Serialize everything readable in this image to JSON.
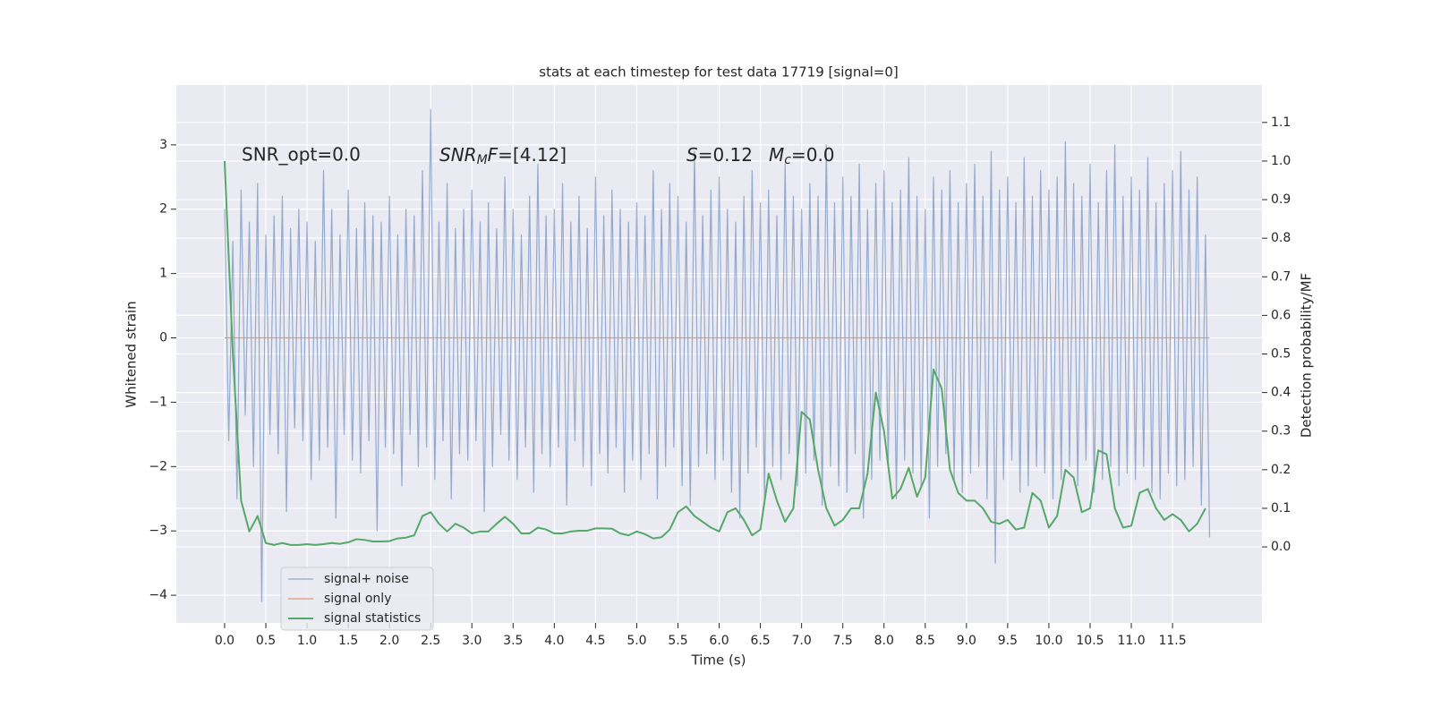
{
  "chart_data": {
    "type": "line",
    "title": "stats at each timestep for test data 17719 [signal=0]",
    "xlabel": "Time (s)",
    "ylabel": "Whitened strain",
    "y2label": "Detection probability/MF",
    "annotations": [
      "SNR_opt=0.0",
      [
        "SNR",
        "M",
        "F",
        "=[4.12]"
      ],
      [
        "S",
        "=0.12",
        "M",
        "c",
        "=0.0"
      ]
    ],
    "grid": true,
    "legend": "lower left",
    "xlim": [
      -0.586,
      12.585
    ],
    "ylim": [
      -4.43,
      3.93
    ],
    "y2lim": [
      -0.197,
      1.197
    ],
    "xticks": [
      {
        "value": 0,
        "label": "0.0"
      },
      0.5,
      {
        "value": 1,
        "label": "1.0"
      },
      1.5,
      {
        "value": 2,
        "label": "2.0"
      },
      2.5,
      {
        "value": 3,
        "label": "3.0"
      },
      3.5,
      {
        "value": 4,
        "label": "4.0"
      },
      4.5,
      {
        "value": 5,
        "label": "5.0"
      },
      5.5,
      {
        "value": 6,
        "label": "6.0"
      },
      6.5,
      {
        "value": 7,
        "label": "7.0"
      },
      7.5,
      {
        "value": 8,
        "label": "8.0"
      },
      8.5,
      {
        "value": 9,
        "label": "9.0"
      },
      9.5,
      {
        "value": 10,
        "label": "10.0"
      },
      10.5,
      {
        "value": 11,
        "label": "11.0"
      },
      11.5
    ],
    "yticks": [
      {
        "value": -4,
        "label": "−4"
      },
      {
        "value": -3,
        "label": "−3"
      },
      {
        "value": -2,
        "label": "−2"
      },
      {
        "value": -1,
        "label": "−1"
      },
      0,
      1,
      2,
      3
    ],
    "y2ticks": [
      {
        "value": 0,
        "label": "0.0"
      },
      0.1,
      0.2,
      0.3,
      0.4,
      0.5,
      0.6,
      0.7,
      0.8,
      0.9,
      {
        "value": 1,
        "label": "1.0"
      },
      1.1
    ],
    "x": [
      0,
      0.05,
      0.1,
      0.15,
      0.2,
      0.25,
      0.3,
      0.35,
      0.4,
      0.45,
      0.5,
      0.55,
      0.6,
      0.65,
      0.7,
      0.75,
      0.8,
      0.85,
      0.9,
      0.95,
      1,
      1.05,
      1.1,
      1.15,
      1.2,
      1.25,
      1.3,
      1.35,
      1.4,
      1.45,
      1.5,
      1.55,
      1.6,
      1.65,
      1.7,
      1.75,
      1.8,
      1.85,
      1.9,
      1.95,
      2,
      2.05,
      2.1,
      2.15,
      2.2,
      2.25,
      2.3,
      2.35,
      2.4,
      2.45,
      2.5,
      2.55,
      2.6,
      2.65,
      2.7,
      2.75,
      2.8,
      2.85,
      2.9,
      2.95,
      3,
      3.05,
      3.1,
      3.15,
      3.2,
      3.25,
      3.3,
      3.35,
      3.4,
      3.45,
      3.5,
      3.55,
      3.6,
      3.65,
      3.7,
      3.75,
      3.8,
      3.85,
      3.9,
      3.95,
      4,
      4.05,
      4.1,
      4.15,
      4.2,
      4.25,
      4.3,
      4.35,
      4.4,
      4.45,
      4.5,
      4.55,
      4.6,
      4.65,
      4.7,
      4.75,
      4.8,
      4.85,
      4.9,
      4.95,
      5,
      5.05,
      5.1,
      5.15,
      5.2,
      5.25,
      5.3,
      5.35,
      5.4,
      5.45,
      5.5,
      5.55,
      5.6,
      5.65,
      5.7,
      5.75,
      5.8,
      5.85,
      5.9,
      5.95,
      6,
      6.05,
      6.1,
      6.15,
      6.2,
      6.25,
      6.3,
      6.35,
      6.4,
      6.45,
      6.5,
      6.55,
      6.6,
      6.65,
      6.7,
      6.75,
      6.8,
      6.85,
      6.9,
      6.95,
      7,
      7.05,
      7.1,
      7.15,
      7.2,
      7.25,
      7.3,
      7.35,
      7.4,
      7.45,
      7.5,
      7.55,
      7.6,
      7.65,
      7.7,
      7.75,
      7.8,
      7.85,
      7.9,
      7.95,
      8,
      8.05,
      8.1,
      8.15,
      8.2,
      8.25,
      8.3,
      8.35,
      8.4,
      8.45,
      8.5,
      8.55,
      8.6,
      8.65,
      8.7,
      8.75,
      8.8,
      8.85,
      8.9,
      8.95,
      9,
      9.05,
      9.1,
      9.15,
      9.2,
      9.25,
      9.3,
      9.35,
      9.4,
      9.45,
      9.5,
      9.55,
      9.6,
      9.65,
      9.7,
      9.75,
      9.8,
      9.85,
      9.9,
      9.95,
      10,
      10.05,
      10.1,
      10.15,
      10.2,
      10.25,
      10.3,
      10.35,
      10.4,
      10.45,
      10.5,
      10.55,
      10.6,
      10.65,
      10.7,
      10.75,
      10.8,
      10.85,
      10.9,
      10.95,
      11,
      11.05,
      11.1,
      11.15,
      11.2,
      11.25,
      11.3,
      11.35,
      11.4,
      11.45,
      11.5,
      11.55,
      11.6,
      11.65,
      11.7,
      11.75,
      11.8,
      11.85,
      11.9,
      11.95
    ],
    "series": [
      {
        "name": "signal+ noise",
        "color": "#4c72b0",
        "values": [
          2.0,
          -1.6,
          1.5,
          -2.5,
          2.3,
          -1.2,
          1.8,
          -2.0,
          2.4,
          -4.1,
          1.6,
          -1.5,
          1.9,
          -1.8,
          2.2,
          -2.7,
          1.7,
          -1.4,
          2.0,
          -1.6,
          1.8,
          -2.2,
          1.5,
          -1.9,
          2.6,
          -1.7,
          2.0,
          -2.8,
          1.6,
          -1.5,
          2.3,
          -1.9,
          1.7,
          -2.1,
          2.1,
          -1.6,
          1.9,
          -3.0,
          1.8,
          -1.7,
          2.2,
          -1.8,
          1.6,
          -2.3,
          2.0,
          -1.5,
          1.9,
          -2.0,
          2.6,
          -1.7,
          3.55,
          -2.2,
          1.8,
          -1.6,
          2.4,
          -2.5,
          1.7,
          -1.8,
          2.0,
          -1.9,
          2.3,
          -1.6,
          1.8,
          -2.7,
          2.1,
          -2.0,
          1.7,
          -1.5,
          2.5,
          -1.9,
          2.0,
          -2.2,
          1.6,
          -1.7,
          2.2,
          -2.4,
          2.7,
          -1.8,
          1.9,
          -2.0,
          2.0,
          -1.7,
          2.4,
          -2.6,
          1.8,
          -1.6,
          2.2,
          -2.0,
          1.7,
          -2.3,
          2.5,
          -1.8,
          1.9,
          -2.1,
          2.3,
          -1.7,
          2.0,
          -2.4,
          1.8,
          -1.9,
          2.1,
          -2.2,
          1.9,
          -1.8,
          2.6,
          -2.5,
          2.0,
          -2.0,
          2.4,
          -1.7,
          2.2,
          -2.3,
          1.8,
          -2.6,
          2.9,
          -2.0,
          1.9,
          -1.8,
          2.3,
          -2.2,
          2.5,
          -1.9,
          2.0,
          -2.4,
          1.8,
          -2.8,
          2.2,
          -2.1,
          2.6,
          -1.7,
          2.1,
          -2.5,
          2.3,
          -2.0,
          1.9,
          -2.2,
          2.7,
          -1.8,
          2.2,
          -2.3,
          2.0,
          -2.1,
          2.4,
          -1.9,
          2.2,
          -2.6,
          3.0,
          -2.0,
          2.1,
          -2.3,
          2.5,
          -2.4,
          2.2,
          -1.8,
          2.7,
          -2.8,
          2.0,
          -2.2,
          2.4,
          -1.9,
          2.6,
          -2.0,
          2.1,
          -2.5,
          2.3,
          -1.9,
          2.8,
          -2.1,
          2.2,
          -2.3,
          2.0,
          -2.8,
          2.5,
          -2.0,
          2.3,
          -1.8,
          2.6,
          -2.2,
          2.1,
          -2.4,
          2.4,
          -2.1,
          2.7,
          -2.0,
          2.2,
          -2.5,
          2.9,
          -3.5,
          2.3,
          -2.2,
          2.5,
          -1.9,
          2.1,
          -2.4,
          2.8,
          -2.3,
          2.2,
          -2.0,
          2.6,
          -2.1,
          2.3,
          -2.5,
          2.5,
          -2.2,
          3.05,
          -2.0,
          2.4,
          -2.3,
          2.2,
          -1.9,
          2.7,
          -2.4,
          2.1,
          -2.2,
          2.6,
          -2.0,
          3.0,
          -2.3,
          2.2,
          -2.1,
          2.5,
          -2.2,
          2.3,
          -2.0,
          2.8,
          -2.4,
          2.1,
          -2.5,
          2.4,
          -2.1,
          2.6,
          -2.3,
          2.9,
          -2.2,
          2.3,
          -2.0,
          2.5,
          -2.6,
          1.6,
          -3.1
        ]
      },
      {
        "name": "signal only",
        "color": "#dd8452",
        "values": [
          0,
          0,
          0,
          0,
          0,
          0,
          0,
          0,
          0,
          0,
          0,
          0,
          0,
          0,
          0,
          0,
          0,
          0,
          0,
          0,
          0,
          0,
          0,
          0,
          0,
          0,
          0,
          0,
          0,
          0,
          0,
          0,
          0,
          0,
          0,
          0,
          0,
          0,
          0,
          0,
          0,
          0,
          0,
          0,
          0,
          0,
          0,
          0,
          0,
          0,
          0,
          0,
          0,
          0,
          0,
          0,
          0,
          0,
          0,
          0,
          0,
          0,
          0,
          0,
          0,
          0,
          0,
          0,
          0,
          0,
          0,
          0,
          0,
          0,
          0,
          0,
          0,
          0,
          0,
          0,
          0,
          0,
          0,
          0,
          0,
          0,
          0,
          0,
          0,
          0,
          0,
          0,
          0,
          0,
          0,
          0,
          0,
          0,
          0,
          0,
          0,
          0,
          0,
          0,
          0,
          0,
          0,
          0,
          0,
          0,
          0,
          0,
          0,
          0,
          0,
          0,
          0,
          0,
          0,
          0,
          0,
          0,
          0,
          0,
          0,
          0,
          0,
          0,
          0,
          0,
          0,
          0,
          0,
          0,
          0,
          0,
          0,
          0,
          0,
          0,
          0,
          0,
          0,
          0,
          0,
          0,
          0,
          0,
          0,
          0,
          0,
          0,
          0,
          0,
          0,
          0,
          0,
          0,
          0,
          0,
          0,
          0,
          0,
          0,
          0,
          0,
          0,
          0,
          0,
          0,
          0,
          0,
          0,
          0,
          0,
          0,
          0,
          0,
          0,
          0,
          0,
          0,
          0,
          0,
          0,
          0,
          0,
          0,
          0,
          0,
          0,
          0,
          0,
          0,
          0,
          0,
          0,
          0,
          0,
          0,
          0,
          0,
          0,
          0,
          0,
          0,
          0,
          0,
          0,
          0,
          0,
          0,
          0,
          0,
          0,
          0,
          0,
          0,
          0,
          0,
          0,
          0,
          0,
          0,
          0,
          0,
          0,
          0,
          0,
          0,
          0,
          0,
          0,
          0,
          0,
          0,
          0,
          0,
          0,
          0
        ]
      },
      {
        "name": "signal statistics",
        "color": "#55a868",
        "axis": "y2",
        "x": [
          0,
          0.1,
          0.2,
          0.3,
          0.4,
          0.5,
          0.6,
          0.7,
          0.8,
          0.9,
          1,
          1.1,
          1.2,
          1.3,
          1.4,
          1.5,
          1.6,
          1.7,
          1.8,
          1.9,
          2,
          2.1,
          2.2,
          2.3,
          2.4,
          2.5,
          2.6,
          2.7,
          2.8,
          2.9,
          3,
          3.1,
          3.2,
          3.3,
          3.4,
          3.5,
          3.6,
          3.7,
          3.8,
          3.9,
          4,
          4.1,
          4.2,
          4.3,
          4.4,
          4.5,
          4.6,
          4.7,
          4.8,
          4.9,
          5,
          5.1,
          5.2,
          5.3,
          5.4,
          5.5,
          5.6,
          5.7,
          5.8,
          5.9,
          6,
          6.1,
          6.2,
          6.3,
          6.4,
          6.5,
          6.6,
          6.7,
          6.8,
          6.9,
          7,
          7.1,
          7.2,
          7.3,
          7.4,
          7.5,
          7.6,
          7.7,
          7.8,
          7.9,
          8,
          8.1,
          8.2,
          8.3,
          8.4,
          8.5,
          8.6,
          8.7,
          8.8,
          8.9,
          9,
          9.1,
          9.2,
          9.3,
          9.4,
          9.5,
          9.6,
          9.7,
          9.8,
          9.9,
          10,
          10.1,
          10.2,
          10.3,
          10.4,
          10.5,
          10.6,
          10.7,
          10.8,
          10.9,
          11,
          11.1,
          11.2,
          11.3,
          11.4,
          11.5,
          11.6,
          11.7,
          11.8,
          11.9
        ],
        "values": [
          1.0,
          0.5,
          0.12,
          0.04,
          0.08,
          0.01,
          0.005,
          0.01,
          0.005,
          0.005,
          0.007,
          0.005,
          0.007,
          0.01,
          0.008,
          0.012,
          0.02,
          0.018,
          0.014,
          0.014,
          0.015,
          0.022,
          0.024,
          0.03,
          0.08,
          0.09,
          0.06,
          0.04,
          0.06,
          0.05,
          0.035,
          0.04,
          0.04,
          0.06,
          0.078,
          0.06,
          0.035,
          0.035,
          0.05,
          0.045,
          0.035,
          0.035,
          0.04,
          0.042,
          0.042,
          0.048,
          0.048,
          0.047,
          0.035,
          0.03,
          0.04,
          0.033,
          0.022,
          0.025,
          0.045,
          0.09,
          0.105,
          0.08,
          0.065,
          0.05,
          0.04,
          0.09,
          0.1,
          0.07,
          0.03,
          0.045,
          0.19,
          0.12,
          0.065,
          0.1,
          0.35,
          0.33,
          0.2,
          0.1,
          0.055,
          0.07,
          0.1,
          0.1,
          0.19,
          0.4,
          0.3,
          0.125,
          0.15,
          0.205,
          0.13,
          0.18,
          0.46,
          0.41,
          0.2,
          0.14,
          0.12,
          0.12,
          0.1,
          0.065,
          0.06,
          0.07,
          0.045,
          0.05,
          0.14,
          0.12,
          0.05,
          0.08,
          0.2,
          0.18,
          0.09,
          0.1,
          0.25,
          0.24,
          0.1,
          0.05,
          0.055,
          0.14,
          0.15,
          0.1,
          0.07,
          0.085,
          0.07,
          0.04,
          0.06,
          0.1
        ]
      }
    ]
  }
}
